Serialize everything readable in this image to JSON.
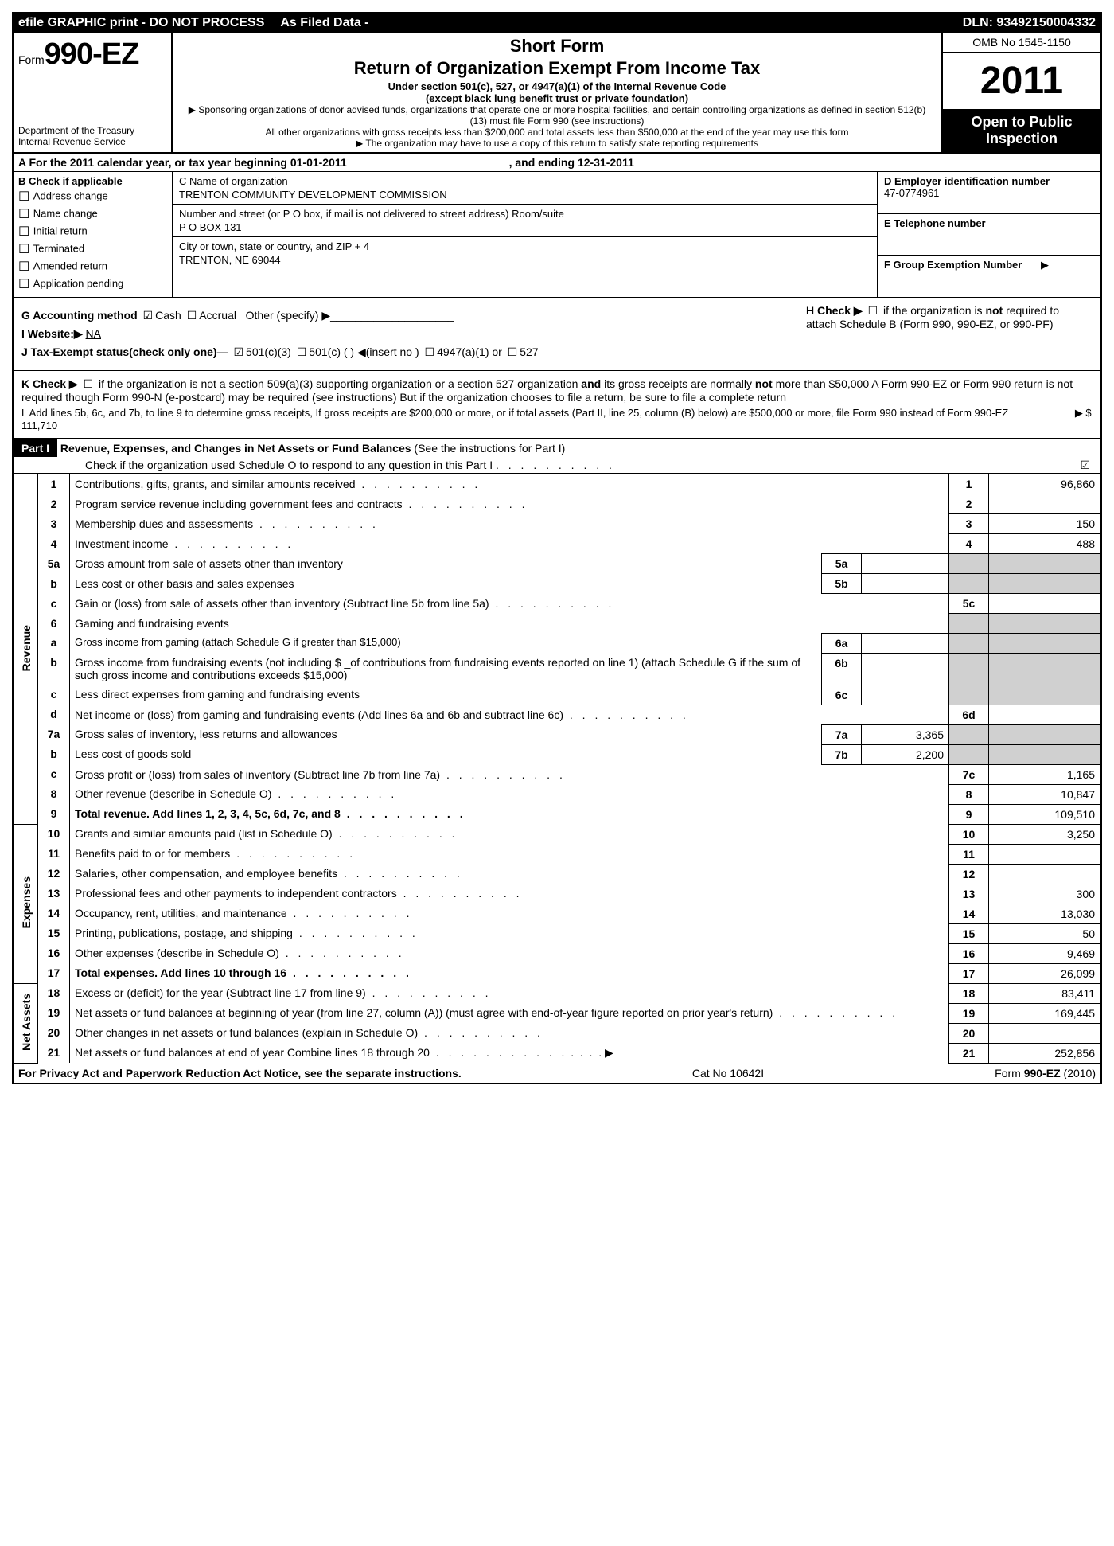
{
  "topBar": {
    "efile": "efile GRAPHIC print - DO NOT PROCESS",
    "asFiled": "As Filed Data -",
    "dln": "DLN: 93492150004332"
  },
  "header": {
    "formPrefix": "Form",
    "formNumber": "990-EZ",
    "dept1": "Department of the Treasury",
    "dept2": "Internal Revenue Service",
    "shortForm": "Short Form",
    "title": "Return of Organization Exempt From Income Tax",
    "sub1": "Under section 501(c), 527, or 4947(a)(1) of the Internal Revenue Code",
    "sub2": "(except black lung benefit trust or private foundation)",
    "note1": "Sponsoring organizations of donor advised funds, organizations that operate one or more hospital facilities, and certain controlling organizations as defined in section 512(b)(13) must file Form 990 (see instructions)",
    "note2": "All other organizations with gross receipts less than $200,000 and total assets less than $500,000 at the end of the year may use this form",
    "note3": "The organization may have to use a copy of this return to satisfy state reporting requirements",
    "omb": "OMB No 1545-1150",
    "year": "2011",
    "open": "Open to Public Inspection"
  },
  "rowA": {
    "text": "A  For the 2011 calendar year, or tax year beginning 01-01-2011",
    "ending": ", and ending 12-31-2011"
  },
  "colB": {
    "header": "B  Check if applicable",
    "items": [
      "Address change",
      "Name change",
      "Initial return",
      "Terminated",
      "Amended return",
      "Application pending"
    ]
  },
  "colC": {
    "nameLabel": "C Name of organization",
    "nameValue": "TRENTON COMMUNITY DEVELOPMENT COMMISSION",
    "streetLabel": "Number and street (or P  O  box, if mail is not delivered to street address) Room/suite",
    "streetValue": "P O BOX 131",
    "cityLabel": "City or town, state or country, and ZIP + 4",
    "cityValue": "TRENTON, NE  69044"
  },
  "colD": {
    "einLabel": "D Employer identification number",
    "einValue": "47-0774961",
    "telLabel": "E Telephone number",
    "telValue": "",
    "groupLabel": "F Group Exemption Number",
    "groupArrow": "▶"
  },
  "mid": {
    "g": "G Accounting method",
    "gCash": "Cash",
    "gAccrual": "Accrual",
    "gOther": "Other (specify) ▶",
    "h": "H   Check ▶",
    "hText": "if the organization is not required to attach Schedule B (Form 990, 990-EZ, or 990-PF)",
    "i": "I Website:▶",
    "iValue": "NA",
    "j": "J Tax-Exempt status(check only one)—",
    "j1": "501(c)(3)",
    "j2": "501(c) (   ) ◀(insert no )",
    "j3": "4947(a)(1) or",
    "j4": "527",
    "k": "K Check ▶",
    "kText": "if the organization is not a section 509(a)(3) supporting organization or a section 527 organization and its gross receipts are normally not more than   $50,000  A Form 990-EZ or Form 990 return is not required though Form 990-N (e-postcard) may be required (see instructions)  But if the organization chooses to file a return, be sure to file a complete return",
    "l": "L Add lines 5b, 6c, and 7b, to line 9 to determine gross receipts, If gross receipts are $200,000 or more, or if total assets (Part II, line 25, column (B) below) are $500,000 or more, file Form 990 instead of Form 990-EZ",
    "lAmount": "▶ $                         111,710"
  },
  "part1": {
    "label": "Part I",
    "title": "Revenue, Expenses, and Changes in Net Assets or Fund Balances",
    "titleNote": "(See the instructions for Part I)",
    "check": "Check if the organization used Schedule O to respond to any question in this Part I"
  },
  "sections": {
    "revenue": "Revenue",
    "expenses": "Expenses",
    "netassets": "Net Assets"
  },
  "lines": [
    {
      "n": "1",
      "d": "Contributions, gifts, grants, and similar amounts received",
      "mn": "1",
      "mv": "96,860"
    },
    {
      "n": "2",
      "d": "Program service revenue including government fees and contracts",
      "mn": "2",
      "mv": ""
    },
    {
      "n": "3",
      "d": "Membership dues and assessments",
      "mn": "3",
      "mv": "150"
    },
    {
      "n": "4",
      "d": "Investment income",
      "mn": "4",
      "mv": "488"
    },
    {
      "n": "5a",
      "d": "Gross amount from sale of assets other than inventory",
      "sn": "5a",
      "sv": "",
      "shaded": true
    },
    {
      "n": "b",
      "d": "Less  cost or other basis and sales expenses",
      "sn": "5b",
      "sv": "",
      "shaded": true
    },
    {
      "n": "c",
      "d": "Gain or (loss) from sale of assets other than inventory (Subtract line 5b from line 5a)",
      "mn": "5c",
      "mv": ""
    },
    {
      "n": "6",
      "d": "Gaming and fundraising events",
      "shaded": true,
      "nounder": true
    },
    {
      "n": "a",
      "d": "Gross income from gaming (attach Schedule G if greater than $15,000)",
      "sn": "6a",
      "sv": "",
      "shaded": true,
      "small": true
    },
    {
      "n": "b",
      "d": "Gross income from fundraising events (not including $ _of contributions from fundraising events reported on line 1) (attach Schedule G if the sum of such gross income and contributions exceeds $15,000)",
      "sn": "6b",
      "sv": "",
      "shaded": true
    },
    {
      "n": "c",
      "d": "Less  direct expenses from gaming and fundraising events",
      "sn": "6c",
      "sv": "",
      "shaded": true
    },
    {
      "n": "d",
      "d": "Net income or (loss) from gaming and fundraising events (Add lines 6a and 6b and subtract line 6c)",
      "mn": "6d",
      "mv": ""
    },
    {
      "n": "7a",
      "d": "Gross sales of inventory, less returns and allowances",
      "sn": "7a",
      "sv": "3,365",
      "shaded": true
    },
    {
      "n": "b",
      "d": "Less  cost of goods sold",
      "sn": "7b",
      "sv": "2,200",
      "shaded": true
    },
    {
      "n": "c",
      "d": "Gross profit or (loss) from sales of inventory (Subtract line 7b from line 7a)",
      "mn": "7c",
      "mv": "1,165"
    },
    {
      "n": "8",
      "d": "Other revenue (describe in Schedule O)",
      "mn": "8",
      "mv": "10,847"
    },
    {
      "n": "9",
      "d": "Total revenue. Add lines 1, 2, 3, 4, 5c, 6d, 7c, and 8",
      "mn": "9",
      "mv": "109,510",
      "bold": true
    }
  ],
  "expLines": [
    {
      "n": "10",
      "d": "Grants and similar amounts paid (list in Schedule O)",
      "mn": "10",
      "mv": "3,250"
    },
    {
      "n": "11",
      "d": "Benefits paid to or for members",
      "mn": "11",
      "mv": ""
    },
    {
      "n": "12",
      "d": "Salaries, other compensation, and employee benefits",
      "mn": "12",
      "mv": ""
    },
    {
      "n": "13",
      "d": "Professional fees and other payments to independent contractors",
      "mn": "13",
      "mv": "300"
    },
    {
      "n": "14",
      "d": "Occupancy, rent, utilities, and maintenance",
      "mn": "14",
      "mv": "13,030"
    },
    {
      "n": "15",
      "d": "Printing, publications, postage, and shipping",
      "mn": "15",
      "mv": "50"
    },
    {
      "n": "16",
      "d": "Other expenses (describe in Schedule O)",
      "mn": "16",
      "mv": "9,469"
    },
    {
      "n": "17",
      "d": "Total expenses. Add lines 10 through 16",
      "mn": "17",
      "mv": "26,099",
      "bold": true
    }
  ],
  "netLines": [
    {
      "n": "18",
      "d": "Excess or (deficit) for the year (Subtract line 17 from line 9)",
      "mn": "18",
      "mv": "83,411"
    },
    {
      "n": "19",
      "d": "Net assets or fund balances at beginning of year (from line 27, column (A)) (must agree with end-of-year figure reported on prior year's return)",
      "mn": "19",
      "mv": "169,445"
    },
    {
      "n": "20",
      "d": "Other changes in net assets or fund balances (explain in Schedule O)",
      "mn": "20",
      "mv": ""
    },
    {
      "n": "21",
      "d": "Net assets or fund balances at end of year  Combine lines 18 through 20",
      "mn": "21",
      "mv": "252,856",
      "arrow": true
    }
  ],
  "footer": {
    "left": "For Privacy Act and Paperwork Reduction Act Notice, see the separate instructions.",
    "mid": "Cat No  10642I",
    "right": "Form 990-EZ (2010)"
  }
}
